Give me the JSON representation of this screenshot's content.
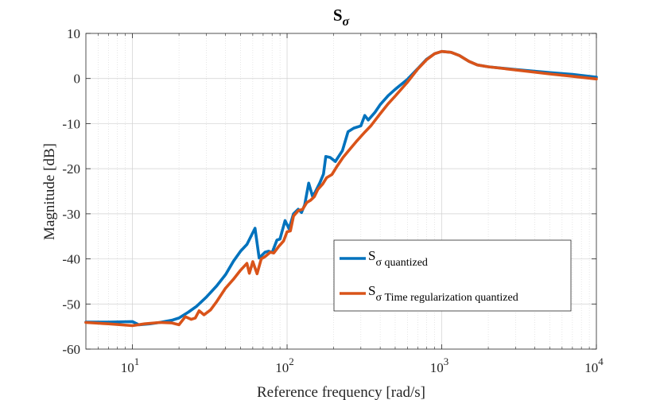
{
  "chart_data": {
    "type": "line",
    "title": {
      "main": "S",
      "sub": "σ"
    },
    "xlabel": "Reference frequency [rad/s]",
    "ylabel": "Magnitude [dB]",
    "xscale": "log",
    "xlim": [
      5,
      10000
    ],
    "ylim": [
      -60,
      10
    ],
    "grid": true,
    "legend_position": "lower-right",
    "x_ticks": [
      {
        "value": 10,
        "base": "10",
        "exp": "1"
      },
      {
        "value": 100,
        "base": "10",
        "exp": "2"
      },
      {
        "value": 1000,
        "base": "10",
        "exp": "3"
      },
      {
        "value": 10000,
        "base": "10",
        "exp": "4"
      }
    ],
    "y_ticks": [
      {
        "value": 10,
        "label": "10"
      },
      {
        "value": 0,
        "label": "0"
      },
      {
        "value": -10,
        "label": "-10"
      },
      {
        "value": -20,
        "label": "-20"
      },
      {
        "value": -30,
        "label": "-30"
      },
      {
        "value": -40,
        "label": "-40"
      },
      {
        "value": -50,
        "label": "-50"
      },
      {
        "value": -60,
        "label": "-60"
      }
    ],
    "series": [
      {
        "name_main": "S",
        "name_sub": "σ quantized",
        "color": "#0072BD",
        "points": [
          [
            5,
            -54
          ],
          [
            7,
            -54
          ],
          [
            10,
            -53.9
          ],
          [
            11,
            -54.6
          ],
          [
            13,
            -54.4
          ],
          [
            15,
            -54.1
          ],
          [
            18,
            -53.6
          ],
          [
            20,
            -53.1
          ],
          [
            23,
            -51.8
          ],
          [
            26,
            -50.5
          ],
          [
            30,
            -48.5
          ],
          [
            35,
            -46
          ],
          [
            40,
            -43.5
          ],
          [
            45,
            -40.5
          ],
          [
            50,
            -38.3
          ],
          [
            55,
            -36.8
          ],
          [
            62,
            -33.2
          ],
          [
            66,
            -39.8
          ],
          [
            72,
            -38.5
          ],
          [
            76,
            -38.3
          ],
          [
            80,
            -38.6
          ],
          [
            86,
            -35.8
          ],
          [
            90,
            -35.6
          ],
          [
            97,
            -31.5
          ],
          [
            103,
            -33.3
          ],
          [
            110,
            -30
          ],
          [
            118,
            -29
          ],
          [
            124,
            -29.7
          ],
          [
            130,
            -28
          ],
          [
            138,
            -23.2
          ],
          [
            146,
            -26.1
          ],
          [
            152,
            -25.2
          ],
          [
            163,
            -23.1
          ],
          [
            172,
            -21.2
          ],
          [
            178,
            -17.3
          ],
          [
            190,
            -17.5
          ],
          [
            205,
            -18.4
          ],
          [
            228,
            -16
          ],
          [
            248,
            -11.8
          ],
          [
            270,
            -11
          ],
          [
            300,
            -10.5
          ],
          [
            318,
            -8.2
          ],
          [
            335,
            -9.2
          ],
          [
            370,
            -7.5
          ],
          [
            400,
            -5.8
          ],
          [
            450,
            -3.8
          ],
          [
            500,
            -2.4
          ],
          [
            600,
            -0.2
          ],
          [
            700,
            2.2
          ],
          [
            800,
            4.3
          ],
          [
            900,
            5.5
          ],
          [
            1000,
            6
          ],
          [
            1150,
            5.8
          ],
          [
            1300,
            5.1
          ],
          [
            1500,
            3.8
          ],
          [
            1700,
            3
          ],
          [
            2000,
            2.6
          ],
          [
            3000,
            2
          ],
          [
            5000,
            1.3
          ],
          [
            7000,
            0.9
          ],
          [
            10000,
            0.3
          ]
        ]
      },
      {
        "name_main": "S",
        "name_sub": "σ Time regularization quantized",
        "color": "#D95319",
        "points": [
          [
            5,
            -54.1
          ],
          [
            7,
            -54.4
          ],
          [
            10,
            -54.8
          ],
          [
            12,
            -54.4
          ],
          [
            15,
            -54.1
          ],
          [
            18,
            -54.2
          ],
          [
            20,
            -54.6
          ],
          [
            22,
            -52.8
          ],
          [
            24,
            -53.4
          ],
          [
            25.5,
            -53.1
          ],
          [
            27,
            -51.5
          ],
          [
            29,
            -52.4
          ],
          [
            32,
            -51.3
          ],
          [
            35,
            -49.5
          ],
          [
            40,
            -46.5
          ],
          [
            45,
            -44.5
          ],
          [
            50,
            -42.5
          ],
          [
            55,
            -41
          ],
          [
            57,
            -43.2
          ],
          [
            60,
            -40.6
          ],
          [
            64,
            -43.3
          ],
          [
            68,
            -40
          ],
          [
            72,
            -39.5
          ],
          [
            78,
            -38.5
          ],
          [
            82,
            -38.7
          ],
          [
            88,
            -37.3
          ],
          [
            95,
            -36
          ],
          [
            100,
            -34
          ],
          [
            105,
            -33.8
          ],
          [
            110,
            -30.5
          ],
          [
            118,
            -29.3
          ],
          [
            126,
            -29
          ],
          [
            134,
            -27.5
          ],
          [
            142,
            -27
          ],
          [
            150,
            -26.2
          ],
          [
            158,
            -24.6
          ],
          [
            170,
            -23.4
          ],
          [
            180,
            -22
          ],
          [
            195,
            -21.3
          ],
          [
            210,
            -19.5
          ],
          [
            230,
            -17.5
          ],
          [
            250,
            -16
          ],
          [
            280,
            -14
          ],
          [
            320,
            -11.8
          ],
          [
            350,
            -10.4
          ],
          [
            400,
            -7.8
          ],
          [
            450,
            -5.6
          ],
          [
            500,
            -3.9
          ],
          [
            600,
            -0.8
          ],
          [
            700,
            2.1
          ],
          [
            800,
            4.2
          ],
          [
            900,
            5.5
          ],
          [
            1000,
            6
          ],
          [
            1150,
            5.8
          ],
          [
            1300,
            5.1
          ],
          [
            1500,
            3.8
          ],
          [
            1700,
            3
          ],
          [
            2000,
            2.6
          ],
          [
            3000,
            1.9
          ],
          [
            5000,
            1
          ],
          [
            7000,
            0.5
          ],
          [
            10000,
            -0.1
          ]
        ]
      }
    ]
  }
}
